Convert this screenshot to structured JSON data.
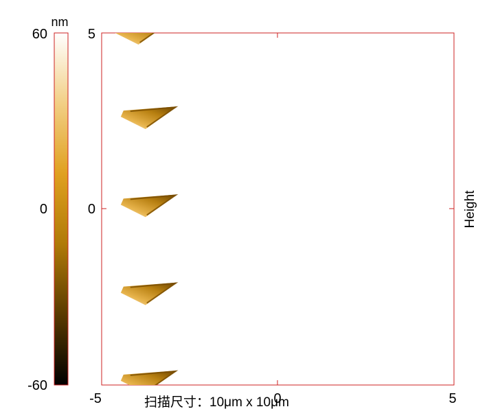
{
  "chart_data": {
    "type": "heatmap",
    "xlim": [
      -5,
      5
    ],
    "ylim": [
      -5,
      5
    ],
    "x_ticks": [
      "-5",
      "0",
      "5"
    ],
    "y_ticks": [
      "5",
      "0"
    ],
    "side_label": "Height",
    "colorbar": {
      "unit": "nm",
      "range": [
        -60,
        60
      ],
      "ticks": [
        "60",
        "0",
        "-60"
      ],
      "colors": [
        "#000000",
        "#5a3a00",
        "#b07a08",
        "#e0a020",
        "#f2cf85",
        "#ffffff"
      ]
    },
    "features": [
      {
        "center_x": -3.8,
        "center_y": 5.0
      },
      {
        "center_x": -3.6,
        "center_y": 2.6
      },
      {
        "center_x": -3.6,
        "center_y": 0.1
      },
      {
        "center_x": -3.6,
        "center_y": -2.4
      },
      {
        "center_x": -3.6,
        "center_y": -4.9
      }
    ],
    "grid": false
  },
  "caption": {
    "label": "扫描尺寸：",
    "value": "10μm x 10μm"
  }
}
